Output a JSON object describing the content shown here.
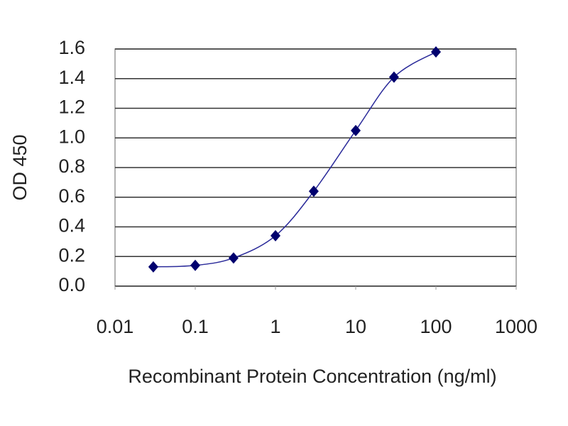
{
  "chart_data": {
    "type": "line",
    "x_label": "Recombinant Protein Concentration (ng/ml)",
    "y_label": "OD 450",
    "x": [
      0.03,
      0.1,
      0.3,
      1,
      3,
      10,
      30,
      100
    ],
    "values": [
      0.13,
      0.14,
      0.19,
      0.34,
      0.64,
      1.05,
      1.41,
      1.58
    ],
    "color": "#2b2b9a",
    "marker_color": "#00006e",
    "xscale": "log",
    "xlim": [
      0.01,
      1000
    ],
    "xticks": [
      0.01,
      0.1,
      1,
      10,
      100,
      1000
    ],
    "ylim": [
      0,
      1.6
    ],
    "yticks": [
      {
        "value": 0,
        "label": "0.0"
      },
      0.2,
      0.4,
      0.6,
      0.8,
      {
        "value": 1,
        "label": "1.0"
      },
      1.2,
      1.4,
      1.6
    ],
    "grid": true
  }
}
